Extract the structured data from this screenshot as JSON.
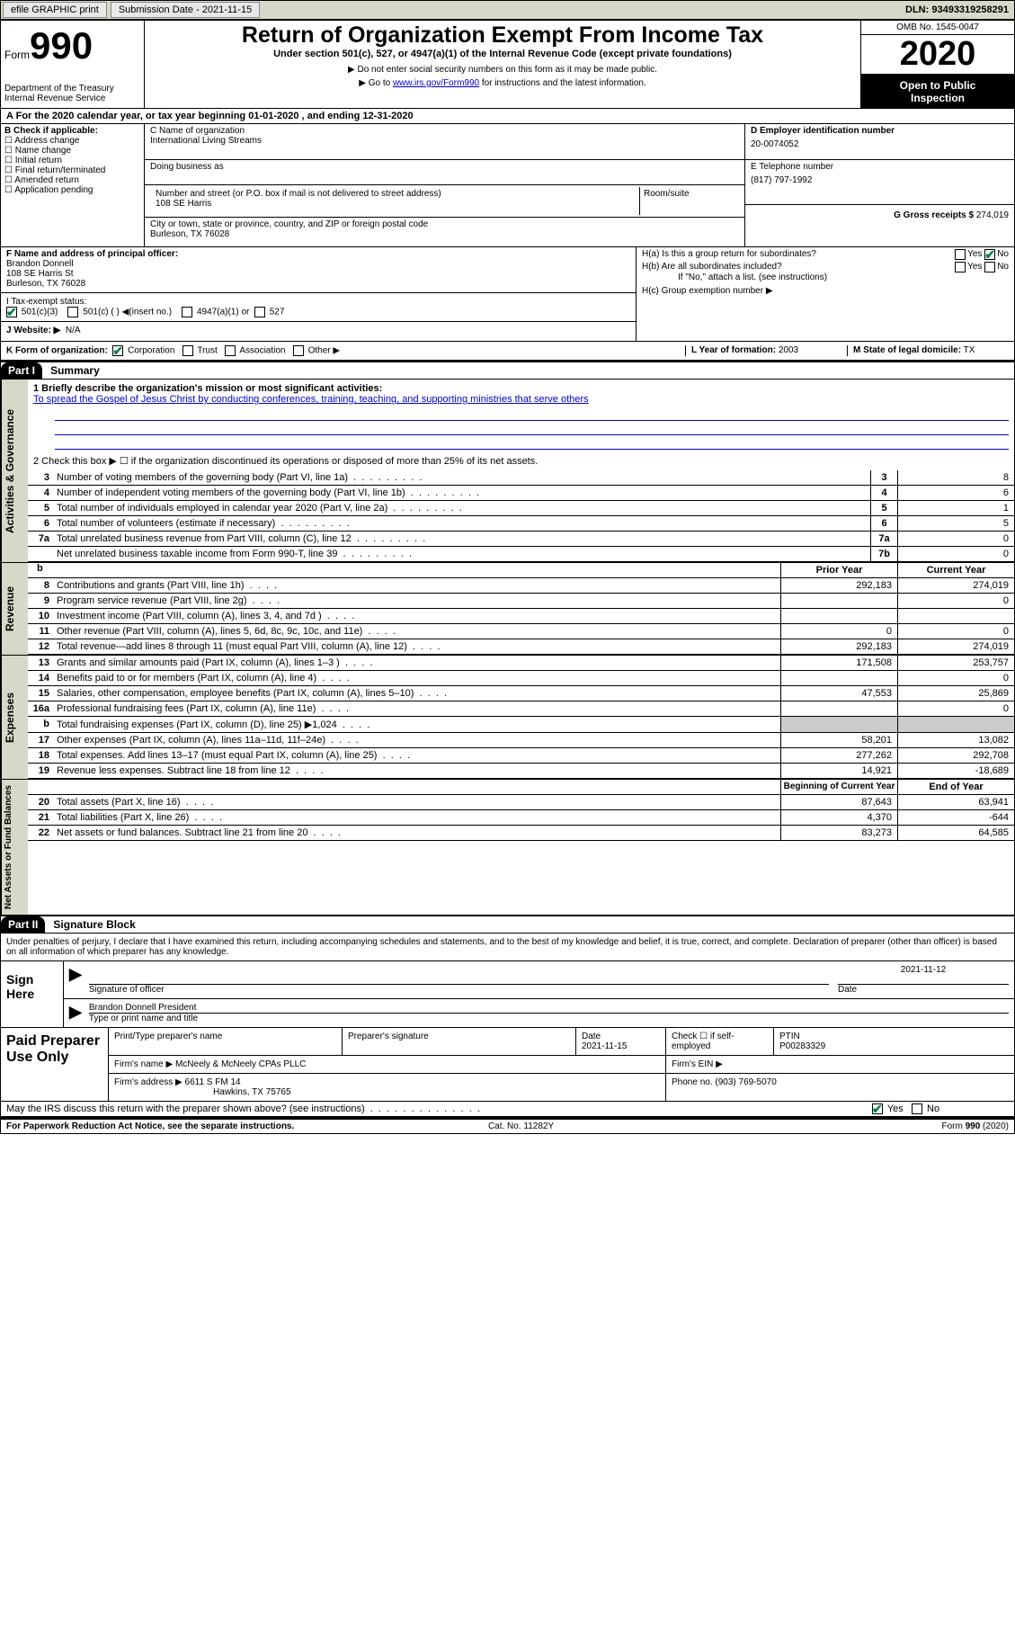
{
  "topbar": {
    "efile": "efile GRAPHIC print",
    "sub_lbl": "Submission Date - ",
    "sub_date": "2021-11-15",
    "dln_lbl": "DLN: ",
    "dln": "93493319258291"
  },
  "header": {
    "form_word": "Form",
    "form_num": "990",
    "dept": "Department of the Treasury\nInternal Revenue Service",
    "title": "Return of Organization Exempt From Income Tax",
    "sub1": "Under section 501(c), 527, or 4947(a)(1) of the Internal Revenue Code (except private foundations)",
    "sub2": "▶ Do not enter social security numbers on this form as it may be made public.",
    "sub3_a": "▶ Go to ",
    "sub3_link": "www.irs.gov/Form990",
    "sub3_b": " for instructions and the latest information.",
    "omb": "OMB No. 1545-0047",
    "year": "2020",
    "open1": "Open to Public",
    "open2": "Inspection"
  },
  "period": "For the 2020 calendar year, or tax year beginning 01-01-2020    , and ending 12-31-2020",
  "boxB": {
    "hdr": "B Check if applicable:",
    "items": [
      "☐ Address change",
      "☐ Name change",
      "☐ Initial return",
      "☐ Final return/terminated",
      "☐ Amended return",
      "☐ Application pending"
    ]
  },
  "boxC": {
    "lbl_name": "C Name of organization",
    "org": "International Living Streams",
    "dba_lbl": "Doing business as",
    "addr_lbl": "Number and street (or P.O. box if mail is not delivered to street address)",
    "room_lbl": "Room/suite",
    "addr": "108 SE Harris",
    "city_lbl": "City or town, state or province, country, and ZIP or foreign postal code",
    "city": "Burleson, TX  76028"
  },
  "boxD": {
    "lbl": "D Employer identification number",
    "val": "20-0074052"
  },
  "boxE": {
    "lbl": "E Telephone number",
    "val": "(817) 797-1992"
  },
  "boxG": {
    "lbl": "G Gross receipts $",
    "val": "274,019"
  },
  "boxF": {
    "lbl": "F  Name and address of principal officer:",
    "name": "Brandon Donnell",
    "addr1": "108 SE Harris St",
    "addr2": "Burleson, TX  76028"
  },
  "boxH": {
    "a_lbl": "H(a)  Is this a group return for subordinates?",
    "a_yes": "Yes",
    "a_no": "No",
    "b_lbl": "H(b)  Are all subordinates included?",
    "b_note": "If \"No,\" attach a list. (see instructions)",
    "c_lbl": "H(c)  Group exemption number ▶"
  },
  "taxI": {
    "lbl": "I   Tax-exempt status:",
    "o1": "501(c)(3)",
    "o2": "501(c) (   ) ◀(insert no.)",
    "o3": "4947(a)(1) or",
    "o4": "527"
  },
  "taxJ": {
    "lbl": "J   Website: ▶",
    "val": "N/A"
  },
  "taxK": {
    "lbl": "K Form of organization:",
    "o1": "Corporation",
    "o2": "Trust",
    "o3": "Association",
    "o4": "Other ▶"
  },
  "taxL": {
    "lbl": "L Year of formation:",
    "val": "2003"
  },
  "taxM": {
    "lbl": "M State of legal domicile:",
    "val": "TX"
  },
  "part1": {
    "num": "Part I",
    "title": "Summary"
  },
  "sidebars": {
    "s1": "Activities & Governance",
    "s2": "Revenue",
    "s3": "Expenses",
    "s4": "Net Assets or Fund Balances"
  },
  "summary": {
    "l1_lbl": "1  Briefly describe the organization's mission or most significant activities:",
    "l1_val": "To spread the Gospel of Jesus Christ by conducting conferences, training, teaching, and supporting ministries that serve others",
    "l2": "2   Check this box ▶ ☐  if the organization discontinued its operations or disposed of more than 25% of its net assets."
  },
  "lines_gov": [
    {
      "n": "3",
      "d": "Number of voting members of the governing body (Part VI, line 1a)",
      "box": "3",
      "v": "8"
    },
    {
      "n": "4",
      "d": "Number of independent voting members of the governing body (Part VI, line 1b)",
      "box": "4",
      "v": "6"
    },
    {
      "n": "5",
      "d": "Total number of individuals employed in calendar year 2020 (Part V, line 2a)",
      "box": "5",
      "v": "1"
    },
    {
      "n": "6",
      "d": "Total number of volunteers (estimate if necessary)",
      "box": "6",
      "v": "5"
    },
    {
      "n": "7a",
      "d": "Total unrelated business revenue from Part VIII, column (C), line 12",
      "box": "7a",
      "v": "0"
    },
    {
      "n": "",
      "d": "Net unrelated business taxable income from Form 990-T, line 39",
      "box": "7b",
      "v": "0"
    }
  ],
  "col_prior": "Prior Year",
  "col_curr": "Current Year",
  "lines_rev": [
    {
      "n": "8",
      "d": "Contributions and grants (Part VIII, line 1h)",
      "p": "292,183",
      "c": "274,019"
    },
    {
      "n": "9",
      "d": "Program service revenue (Part VIII, line 2g)",
      "p": "",
      "c": "0"
    },
    {
      "n": "10",
      "d": "Investment income (Part VIII, column (A), lines 3, 4, and 7d )",
      "p": "",
      "c": ""
    },
    {
      "n": "11",
      "d": "Other revenue (Part VIII, column (A), lines 5, 6d, 8c, 9c, 10c, and 11e)",
      "p": "0",
      "c": "0"
    },
    {
      "n": "12",
      "d": "Total revenue—add lines 8 through 11 (must equal Part VIII, column (A), line 12)",
      "p": "292,183",
      "c": "274,019"
    }
  ],
  "lines_exp": [
    {
      "n": "13",
      "d": "Grants and similar amounts paid (Part IX, column (A), lines 1–3 )",
      "p": "171,508",
      "c": "253,757"
    },
    {
      "n": "14",
      "d": "Benefits paid to or for members (Part IX, column (A), line 4)",
      "p": "",
      "c": "0"
    },
    {
      "n": "15",
      "d": "Salaries, other compensation, employee benefits (Part IX, column (A), lines 5–10)",
      "p": "47,553",
      "c": "25,869"
    },
    {
      "n": "16a",
      "d": "Professional fundraising fees (Part IX, column (A), line 11e)",
      "p": "",
      "c": "0"
    },
    {
      "n": "b",
      "d": "Total fundraising expenses (Part IX, column (D), line 25) ▶1,024",
      "p": "__GREY__",
      "c": "__GREY__"
    },
    {
      "n": "17",
      "d": "Other expenses (Part IX, column (A), lines 11a–11d, 11f–24e)",
      "p": "58,201",
      "c": "13,082"
    },
    {
      "n": "18",
      "d": "Total expenses. Add lines 13–17 (must equal Part IX, column (A), line 25)",
      "p": "277,262",
      "c": "292,708"
    },
    {
      "n": "19",
      "d": "Revenue less expenses. Subtract line 18 from line 12",
      "p": "14,921",
      "c": "-18,689"
    }
  ],
  "col_beg": "Beginning of Current Year",
  "col_end": "End of Year",
  "lines_net": [
    {
      "n": "20",
      "d": "Total assets (Part X, line 16)",
      "p": "87,643",
      "c": "63,941"
    },
    {
      "n": "21",
      "d": "Total liabilities (Part X, line 26)",
      "p": "4,370",
      "c": "-644"
    },
    {
      "n": "22",
      "d": "Net assets or fund balances. Subtract line 21 from line 20",
      "p": "83,273",
      "c": "64,585"
    }
  ],
  "part2": {
    "num": "Part II",
    "title": "Signature Block"
  },
  "sig": {
    "decl": "Under penalties of perjury, I declare that I have examined this return, including accompanying schedules and statements, and to the best of my knowledge and belief, it is true, correct, and complete. Declaration of preparer (other than officer) is based on all information of which preparer has any knowledge.",
    "sign_here": "Sign Here",
    "sig_of": "Signature of officer",
    "date_lbl": "Date",
    "date": "2021-11-12",
    "name": "Brandon Donnell  President",
    "type_lbl": "Type or print name and title"
  },
  "paid": {
    "hdr": "Paid Preparer Use Only",
    "h1": "Print/Type preparer's name",
    "h2": "Preparer's signature",
    "h3": "Date",
    "h3v": "2021-11-15",
    "h4": "Check ☐ if self-employed",
    "h5": "PTIN",
    "h5v": "P00283329",
    "firm_lbl": "Firm's name    ▶",
    "firm": "McNeely & McNeely CPAs PLLC",
    "ein_lbl": "Firm's EIN ▶",
    "addr_lbl": "Firm's address ▶",
    "addr1": "6611 S FM 14",
    "addr2": "Hawkins, TX  75765",
    "phone_lbl": "Phone no.",
    "phone": "(903) 769-5070",
    "discuss": "May the IRS discuss this return with the preparer shown above? (see instructions)",
    "yes": "Yes",
    "no": "No"
  },
  "footer": {
    "l": "For Paperwork Reduction Act Notice, see the separate instructions.",
    "m": "Cat. No. 11282Y",
    "r": "Form 990 (2020)"
  }
}
